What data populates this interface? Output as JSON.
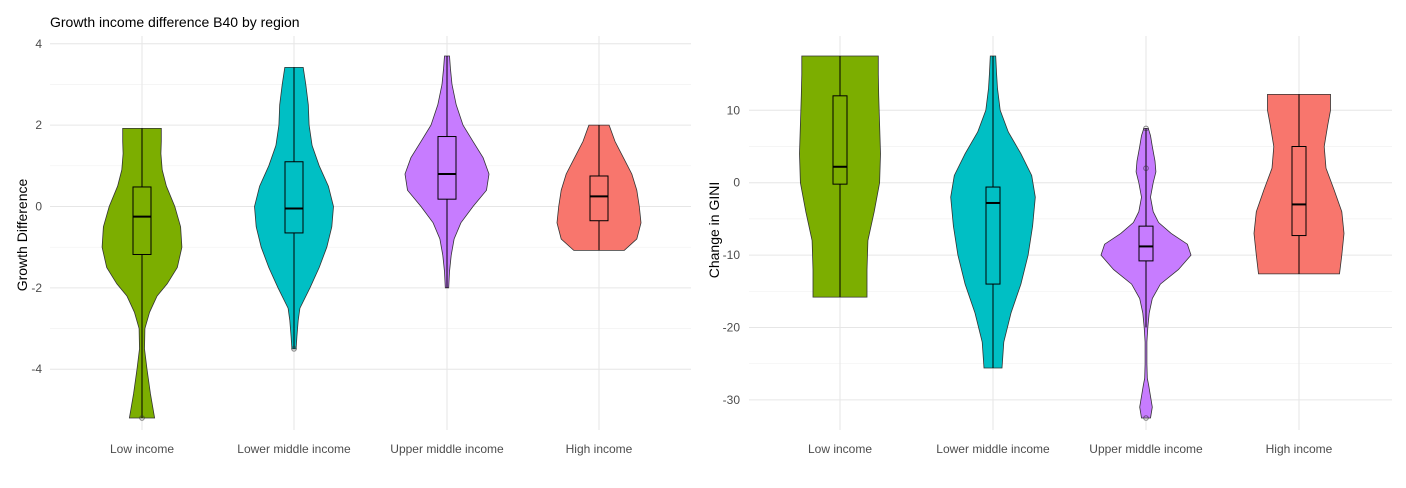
{
  "colors": {
    "Low income": "#7CAE00",
    "Lower middle income": "#00BFC4",
    "Upper middle income": "#C77CFF",
    "High income": "#F8766D"
  },
  "chart_data": [
    {
      "type": "violin",
      "title": "Growth income difference B40 by region",
      "xlabel": "",
      "ylabel": "Growth Difference",
      "ylim": [
        -5.2,
        3.7
      ],
      "yticks": [
        -4,
        -2,
        0,
        2,
        4
      ],
      "grid": true,
      "legend": "none",
      "categories": [
        "Low income",
        "Lower middle income",
        "Upper middle income",
        "High income"
      ],
      "series": [
        {
          "category": "Low income",
          "box": {
            "q1": -1.18,
            "median": -0.25,
            "q3": 0.48,
            "whisker_low": -5.2,
            "whisker_high": 1.92
          },
          "outliers": [
            -5.2
          ],
          "density": [
            [
              -5.2,
              0.3
            ],
            [
              -4.6,
              0.2
            ],
            [
              -4.0,
              0.12
            ],
            [
              -3.5,
              0.06
            ],
            [
              -3.0,
              0.07
            ],
            [
              -2.6,
              0.18
            ],
            [
              -2.2,
              0.36
            ],
            [
              -1.9,
              0.6
            ],
            [
              -1.5,
              0.84
            ],
            [
              -1.0,
              0.95
            ],
            [
              -0.5,
              0.92
            ],
            [
              0.0,
              0.78
            ],
            [
              0.5,
              0.58
            ],
            [
              0.9,
              0.48
            ],
            [
              1.3,
              0.45
            ],
            [
              1.6,
              0.46
            ],
            [
              1.92,
              0.46
            ]
          ]
        },
        {
          "category": "Lower middle income",
          "box": {
            "q1": -0.65,
            "median": -0.05,
            "q3": 1.1,
            "whisker_low": -3.5,
            "whisker_high": 3.42
          },
          "outliers": [
            -3.5
          ],
          "density": [
            [
              -3.5,
              0.05
            ],
            [
              -3.2,
              0.07
            ],
            [
              -2.8,
              0.1
            ],
            [
              -2.5,
              0.14
            ],
            [
              -2.0,
              0.38
            ],
            [
              -1.5,
              0.6
            ],
            [
              -1.0,
              0.78
            ],
            [
              -0.5,
              0.9
            ],
            [
              0.0,
              0.94
            ],
            [
              0.5,
              0.82
            ],
            [
              1.0,
              0.6
            ],
            [
              1.5,
              0.43
            ],
            [
              2.0,
              0.36
            ],
            [
              2.5,
              0.34
            ],
            [
              3.0,
              0.28
            ],
            [
              3.42,
              0.22
            ]
          ]
        },
        {
          "category": "Upper middle income",
          "box": {
            "q1": 0.18,
            "median": 0.8,
            "q3": 1.72,
            "whisker_low": -2.0,
            "whisker_high": 3.7
          },
          "outliers": [],
          "density": [
            [
              -2.0,
              0.04
            ],
            [
              -1.6,
              0.06
            ],
            [
              -1.2,
              0.1
            ],
            [
              -0.8,
              0.17
            ],
            [
              -0.4,
              0.33
            ],
            [
              0.0,
              0.62
            ],
            [
              0.4,
              0.94
            ],
            [
              0.8,
              1.0
            ],
            [
              1.2,
              0.86
            ],
            [
              1.6,
              0.62
            ],
            [
              2.0,
              0.38
            ],
            [
              2.5,
              0.22
            ],
            [
              3.0,
              0.12
            ],
            [
              3.4,
              0.08
            ],
            [
              3.7,
              0.06
            ]
          ]
        },
        {
          "category": "High income",
          "box": {
            "q1": -0.35,
            "median": 0.25,
            "q3": 0.75,
            "whisker_low": -1.08,
            "whisker_high": 2.0
          },
          "outliers": [],
          "density": [
            [
              -1.08,
              0.6
            ],
            [
              -0.8,
              0.9
            ],
            [
              -0.4,
              1.0
            ],
            [
              0.0,
              0.96
            ],
            [
              0.4,
              0.9
            ],
            [
              0.8,
              0.78
            ],
            [
              1.2,
              0.58
            ],
            [
              1.6,
              0.38
            ],
            [
              2.0,
              0.24
            ]
          ]
        }
      ]
    },
    {
      "type": "violin",
      "title": "",
      "xlabel": "",
      "ylabel": "Change in GINI",
      "ylim": [
        -32.5,
        17.5
      ],
      "yticks": [
        -30,
        -20,
        -10,
        0,
        10
      ],
      "grid": true,
      "legend": "none",
      "categories": [
        "Low income",
        "Lower middle income",
        "Upper middle income",
        "High income"
      ],
      "series": [
        {
          "category": "Low income",
          "box": {
            "q1": -0.2,
            "median": 2.2,
            "q3": 12.0,
            "whisker_low": -15.8,
            "whisker_high": 17.5
          },
          "outliers": [],
          "density": [
            [
              -15.8,
              0.6
            ],
            [
              -12,
              0.6
            ],
            [
              -8,
              0.62
            ],
            [
              -4,
              0.76
            ],
            [
              0,
              0.88
            ],
            [
              4,
              0.9
            ],
            [
              8,
              0.88
            ],
            [
              12,
              0.86
            ],
            [
              15,
              0.85
            ],
            [
              17.5,
              0.85
            ]
          ]
        },
        {
          "category": "Lower middle income",
          "box": {
            "q1": -14.0,
            "median": -2.8,
            "q3": -0.6,
            "whisker_low": -25.6,
            "whisker_high": 17.5
          },
          "outliers": [],
          "density": [
            [
              -25.6,
              0.2
            ],
            [
              -22,
              0.24
            ],
            [
              -18,
              0.4
            ],
            [
              -14,
              0.62
            ],
            [
              -10,
              0.78
            ],
            [
              -6,
              0.88
            ],
            [
              -2,
              0.94
            ],
            [
              1,
              0.86
            ],
            [
              4,
              0.62
            ],
            [
              7,
              0.34
            ],
            [
              10,
              0.16
            ],
            [
              13,
              0.1
            ],
            [
              15,
              0.08
            ],
            [
              17.5,
              0.06
            ]
          ]
        },
        {
          "category": "Upper middle income",
          "box": {
            "q1": -10.8,
            "median": -8.8,
            "q3": -6.0,
            "whisker_low": -20.0,
            "whisker_high": 7.5
          },
          "outliers": [
            -32.5,
            2.0,
            7.5
          ],
          "density": [
            [
              -32.5,
              0.1
            ],
            [
              -31,
              0.14
            ],
            [
              -29.5,
              0.1
            ],
            [
              -28,
              0.06
            ],
            [
              -27,
              0.03
            ],
            [
              -25,
              0.02
            ],
            [
              -22,
              0.02
            ],
            [
              -20,
              0.04
            ],
            [
              -18,
              0.07
            ],
            [
              -16,
              0.14
            ],
            [
              -14,
              0.32
            ],
            [
              -12,
              0.72
            ],
            [
              -10,
              1.0
            ],
            [
              -8.5,
              0.92
            ],
            [
              -7,
              0.56
            ],
            [
              -5.5,
              0.28
            ],
            [
              -4,
              0.16
            ],
            [
              -2,
              0.1
            ],
            [
              0,
              0.16
            ],
            [
              1.5,
              0.22
            ],
            [
              3,
              0.2
            ],
            [
              5,
              0.14
            ],
            [
              6.5,
              0.1
            ],
            [
              7.5,
              0.05
            ]
          ]
        },
        {
          "category": "High income",
          "box": {
            "q1": -7.3,
            "median": -3.0,
            "q3": 5.0,
            "whisker_low": -12.6,
            "whisker_high": 12.2
          },
          "outliers": [],
          "density": [
            [
              -12.6,
              0.9
            ],
            [
              -10,
              0.95
            ],
            [
              -7,
              1.0
            ],
            [
              -4,
              0.95
            ],
            [
              -1,
              0.78
            ],
            [
              2,
              0.6
            ],
            [
              5,
              0.56
            ],
            [
              8,
              0.64
            ],
            [
              10,
              0.7
            ],
            [
              12.2,
              0.7
            ]
          ]
        }
      ]
    }
  ]
}
